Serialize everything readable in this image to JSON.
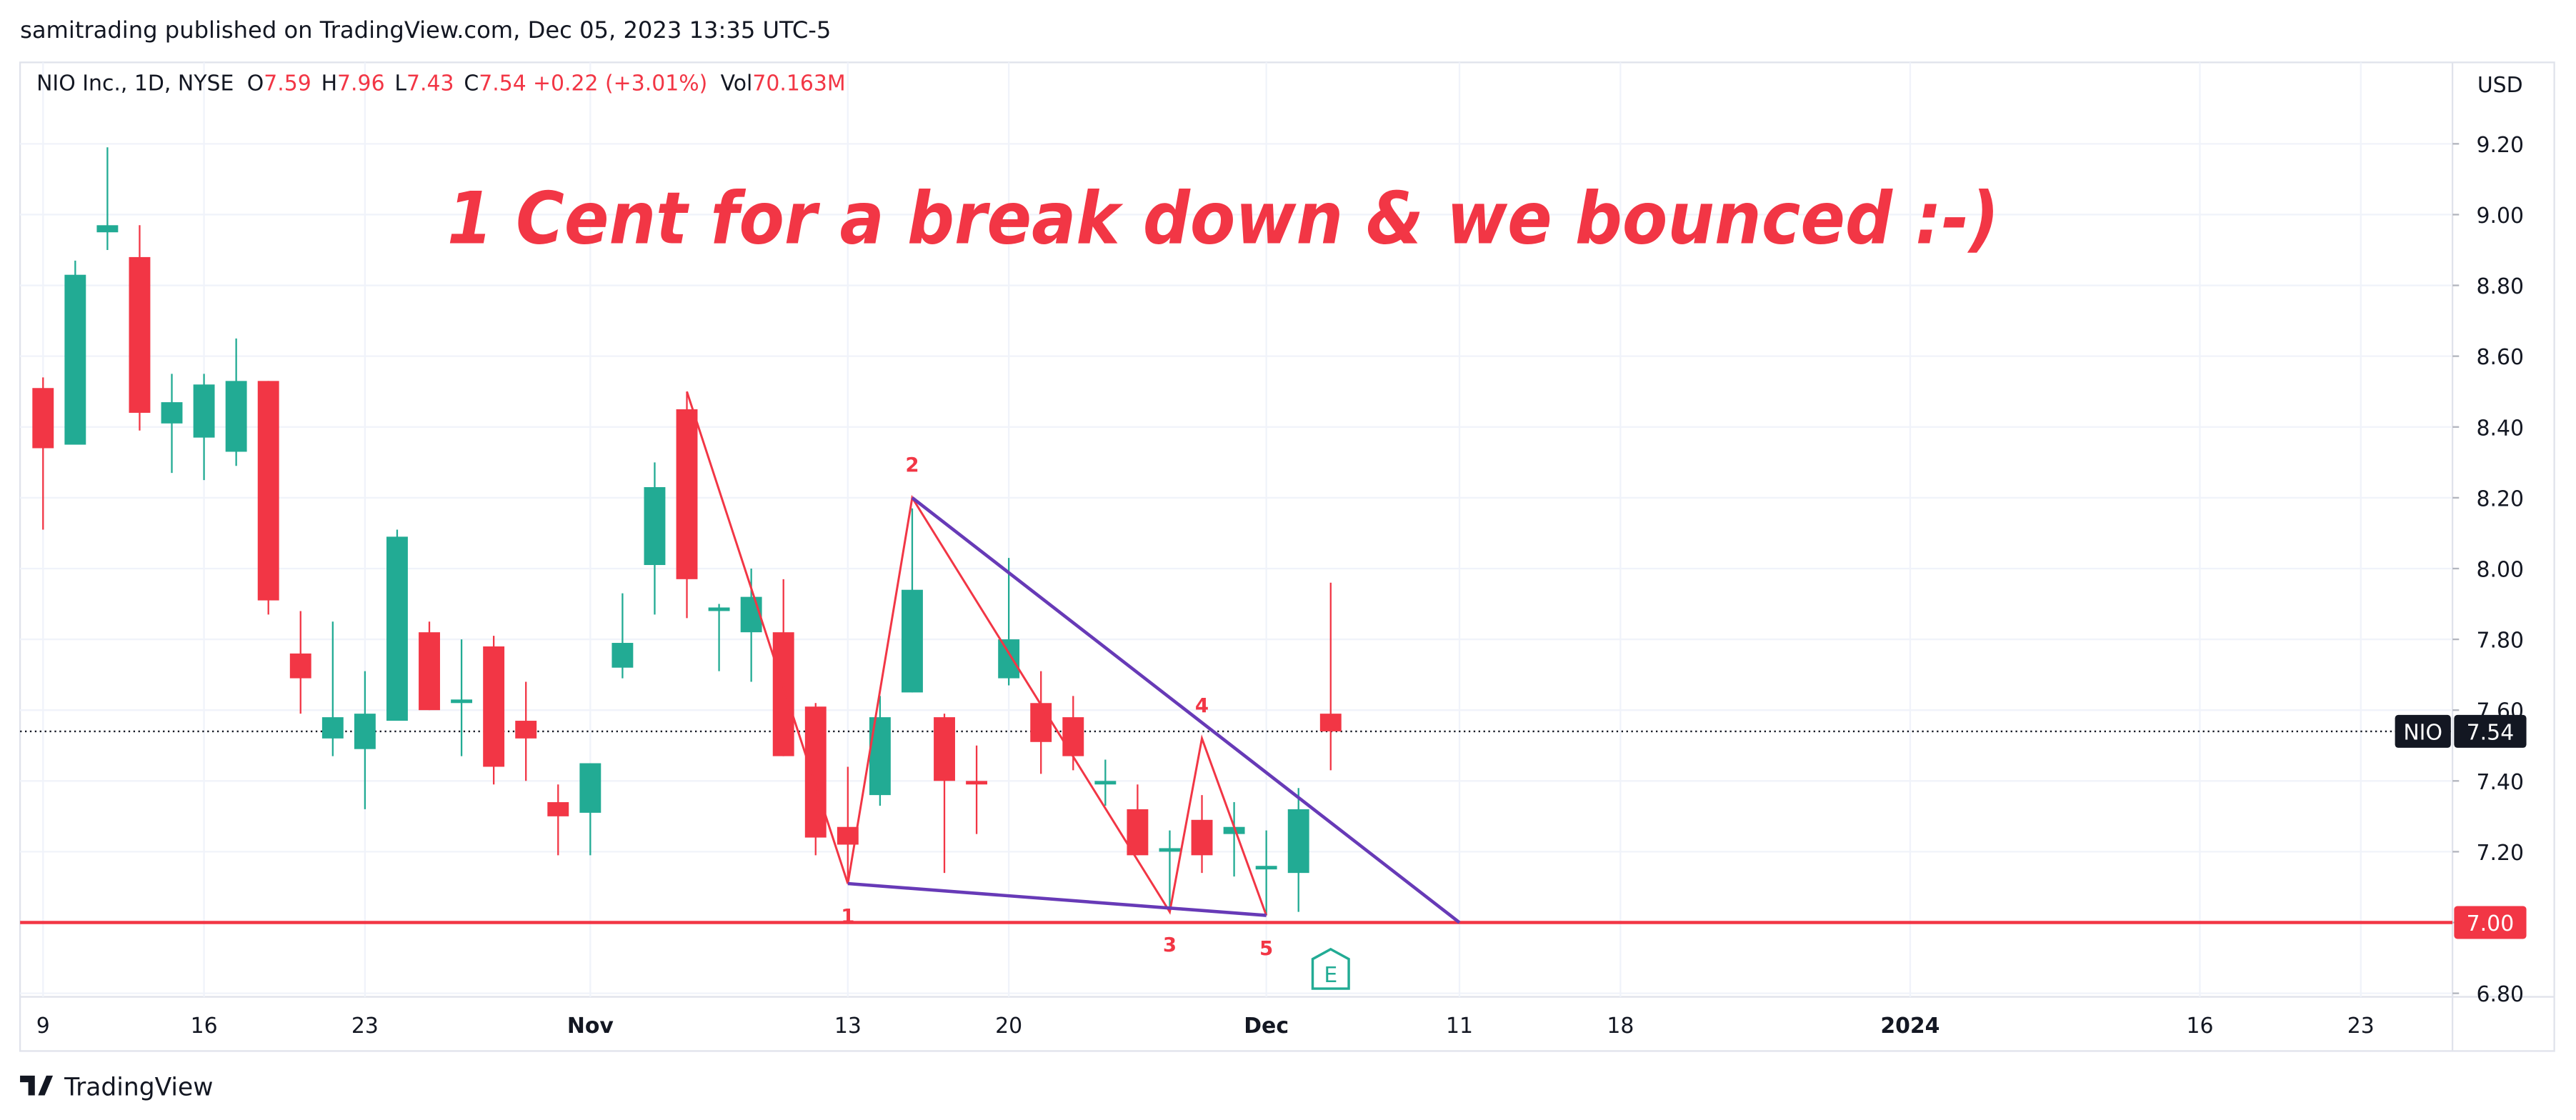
{
  "header": "samitrading published on TradingView.com, Dec 05, 2023 13:35 UTC-5",
  "footer": "TradingView",
  "chart_data": {
    "type": "candlestick",
    "title": "1 Cent for a break down & we bounced :-)",
    "ohlc_legend": {
      "symbol": "NIO Inc., 1D, NYSE",
      "fields": [
        {
          "label": "O",
          "value": 7.59
        },
        {
          "label": "H",
          "value": 7.96
        },
        {
          "label": "L",
          "value": 7.43
        },
        {
          "label": "C",
          "value": 7.54
        }
      ],
      "change": "+0.22 (+3.01%)",
      "volume_label": "Vol",
      "volume": "70.163M"
    },
    "currency": "USD",
    "up_color": "#22ab94",
    "down_color": "#f23645",
    "x": [
      "2023-10-09",
      "2023-10-10",
      "2023-10-11",
      "2023-10-12",
      "2023-10-13",
      "2023-10-16",
      "2023-10-17",
      "2023-10-18",
      "2023-10-19",
      "2023-10-20",
      "2023-10-23",
      "2023-10-24",
      "2023-10-25",
      "2023-10-26",
      "2023-10-27",
      "2023-10-30",
      "2023-10-31",
      "2023-11-01",
      "2023-11-02",
      "2023-11-03",
      "2023-11-06",
      "2023-11-07",
      "2023-11-08",
      "2023-11-09",
      "2023-11-10",
      "2023-11-13",
      "2023-11-14",
      "2023-11-15",
      "2023-11-16",
      "2023-11-17",
      "2023-11-20",
      "2023-11-21",
      "2023-11-22",
      "2023-11-24",
      "2023-11-27",
      "2023-11-28",
      "2023-11-29",
      "2023-11-30",
      "2023-12-01",
      "2023-12-04",
      "2023-12-05"
    ],
    "open": [
      8.51,
      8.35,
      8.95,
      8.88,
      8.41,
      8.37,
      8.33,
      8.53,
      7.76,
      7.52,
      7.49,
      7.57,
      7.82,
      7.62,
      7.78,
      7.57,
      7.34,
      7.31,
      7.72,
      8.01,
      8.45,
      7.88,
      7.82,
      7.82,
      7.61,
      7.27,
      7.36,
      7.65,
      7.58,
      7.4,
      7.69,
      7.62,
      7.58,
      7.39,
      7.32,
      7.2,
      7.29,
      7.25,
      7.15,
      7.14,
      7.59
    ],
    "high": [
      8.54,
      8.87,
      9.19,
      8.97,
      8.55,
      8.55,
      8.65,
      8.53,
      7.88,
      7.85,
      7.71,
      8.11,
      7.85,
      7.8,
      7.81,
      7.68,
      7.39,
      7.45,
      7.93,
      8.3,
      8.5,
      7.9,
      8.0,
      7.97,
      7.62,
      7.44,
      7.64,
      8.17,
      7.59,
      7.5,
      8.03,
      7.71,
      7.64,
      7.46,
      7.39,
      7.26,
      7.36,
      7.34,
      7.26,
      7.38,
      7.96
    ],
    "low": [
      8.11,
      8.35,
      8.9,
      8.39,
      8.27,
      8.25,
      8.29,
      7.87,
      7.59,
      7.47,
      7.32,
      7.57,
      7.6,
      7.47,
      7.39,
      7.4,
      7.19,
      7.19,
      7.69,
      7.87,
      7.86,
      7.71,
      7.68,
      7.47,
      7.19,
      7.11,
      7.33,
      7.65,
      7.14,
      7.25,
      7.67,
      7.42,
      7.43,
      7.33,
      7.19,
      7.04,
      7.14,
      7.13,
      7.02,
      7.03,
      7.43
    ],
    "close": [
      8.34,
      8.83,
      8.97,
      8.44,
      8.47,
      8.52,
      8.53,
      7.91,
      7.69,
      7.58,
      7.59,
      8.09,
      7.6,
      7.63,
      7.44,
      7.52,
      7.3,
      7.45,
      7.79,
      8.23,
      7.97,
      7.89,
      7.92,
      7.47,
      7.24,
      7.22,
      7.58,
      7.94,
      7.4,
      7.39,
      7.8,
      7.51,
      7.47,
      7.4,
      7.19,
      7.21,
      7.19,
      7.27,
      7.16,
      7.32,
      7.54
    ],
    "ylim": [
      6.79,
      9.43
    ],
    "yticks": [
      {
        "value": 6.8,
        "label": "6.80"
      },
      {
        "value": 7,
        "label": "7.00"
      },
      {
        "value": 7.2,
        "label": "7.20"
      },
      {
        "value": 7.4,
        "label": "7.40"
      },
      {
        "value": 7.6,
        "label": "7.60"
      },
      {
        "value": 7.8,
        "label": "7.80"
      },
      {
        "value": 8,
        "label": "8.00"
      },
      {
        "value": 8.2,
        "label": "8.20"
      },
      {
        "value": 8.4,
        "label": "8.40"
      },
      {
        "value": 8.6,
        "label": "8.60"
      },
      {
        "value": 8.8,
        "label": "8.80"
      },
      {
        "value": 9,
        "label": "9.00"
      },
      {
        "value": 9.2,
        "label": "9.20"
      }
    ],
    "xticks": [
      {
        "value": "2023-10-09",
        "label": "9"
      },
      {
        "value": "2023-10-16",
        "label": "16"
      },
      {
        "value": "2023-10-23",
        "label": "23"
      },
      {
        "value": "2023-11-01",
        "label": "Nov"
      },
      {
        "value": "2023-11-13",
        "label": "13"
      },
      {
        "value": "2023-11-20",
        "label": "20"
      },
      {
        "value": "2023-12-01",
        "label": "Dec"
      },
      {
        "value": "2023-12-11",
        "label": "11"
      },
      {
        "value": "2023-12-18",
        "label": "18"
      },
      {
        "value": "2024-01-02",
        "label": "2024"
      },
      {
        "value": "2024-01-16",
        "label": "16"
      },
      {
        "value": "2024-01-23",
        "label": "23"
      }
    ],
    "grid": true,
    "price_line": {
      "value": 7,
      "label": "7.00",
      "color": "#f23645"
    },
    "last_price": {
      "symbol": "NIO",
      "value": 7.54
    },
    "drawings": [
      {
        "kind": "zigzag",
        "color": "#f23645",
        "points": [
          {
            "x": "2023-11-06",
            "y": 8.5
          },
          {
            "x": "2023-11-13",
            "y": 7.11,
            "label": "1"
          },
          {
            "x": "2023-11-15",
            "y": 8.2,
            "label": "2"
          },
          {
            "x": "2023-11-28",
            "y": 7.03,
            "label": "3"
          },
          {
            "x": "2023-11-29",
            "y": 7.52,
            "label": "4"
          },
          {
            "x": "2023-12-01",
            "y": 7.02,
            "label": "5"
          }
        ]
      },
      {
        "kind": "trend",
        "color": "#673ab7",
        "points": [
          {
            "x": "2023-11-15",
            "y": 8.2
          },
          {
            "x": "2023-12-11",
            "y": 7
          }
        ]
      },
      {
        "kind": "trend",
        "color": "#673ab7",
        "points": [
          {
            "x": "2023-11-13",
            "y": 7.11
          },
          {
            "x": "2023-12-01",
            "y": 7.02
          }
        ]
      }
    ],
    "events": [
      {
        "x": "2023-12-05",
        "label": "E"
      }
    ]
  }
}
